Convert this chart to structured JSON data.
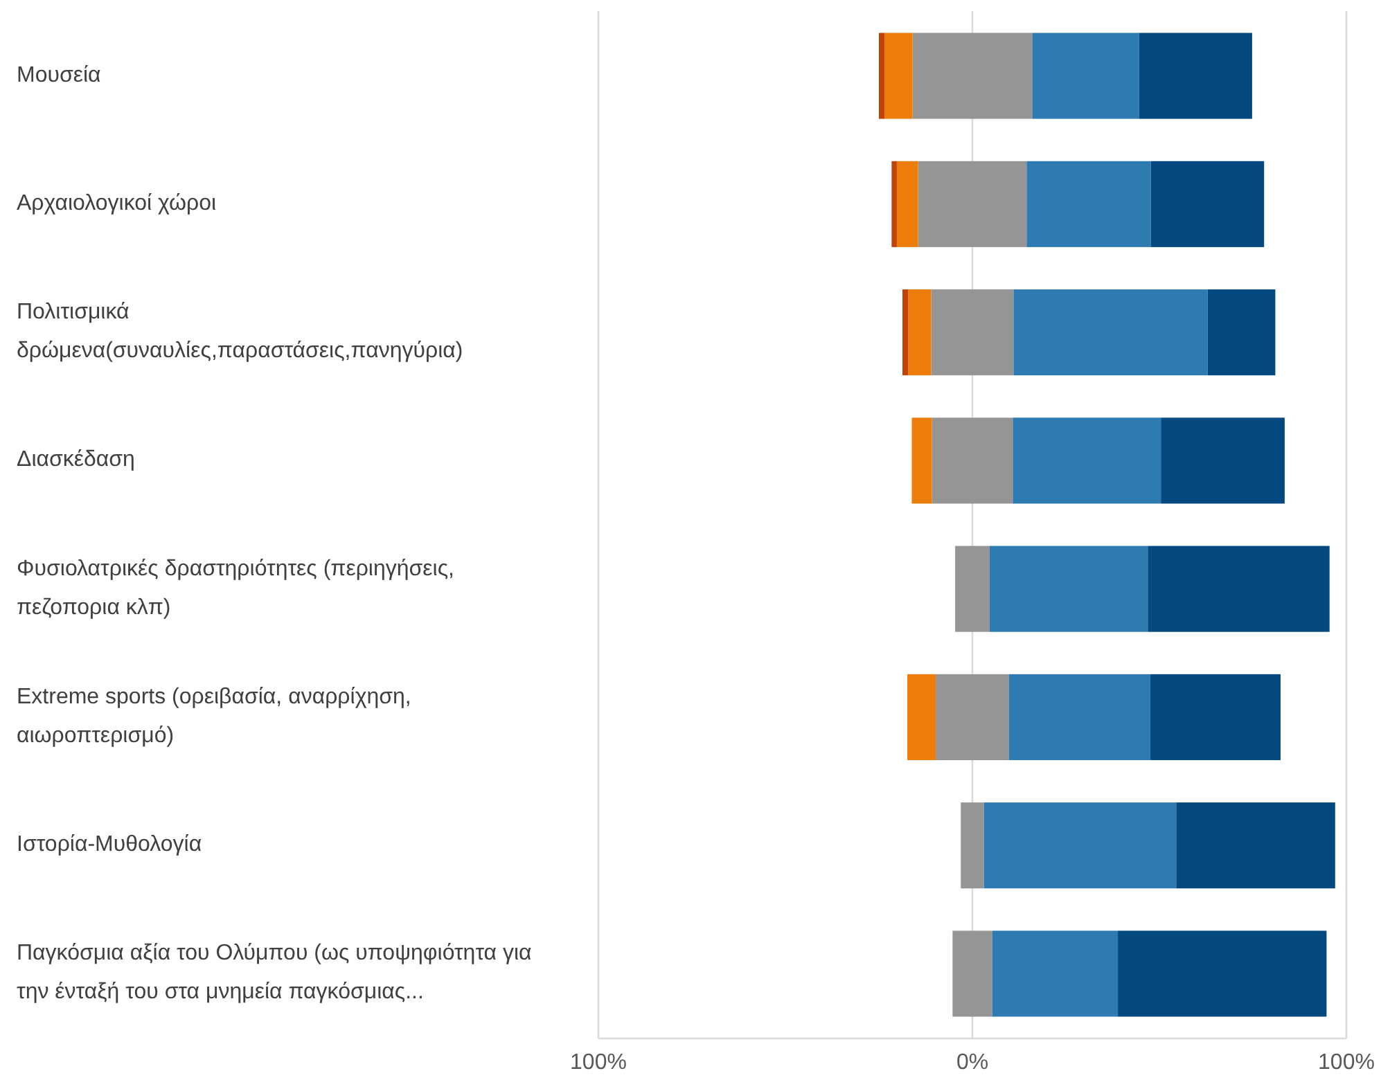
{
  "chart_data": {
    "type": "bar",
    "orientation": "horizontal",
    "stacked": true,
    "categories": [
      "Μουσεία",
      "Αρχαιολογικοί χώροι",
      "Πολιτισμικά δρώμενα(συναυλίες,παραστάσεις,πανηγύρια)",
      "Διασκέδαση",
      "Φυσιολατρικές δραστηριότητες (περιηγήσεις, πεζοπορια κλπ)",
      "Extreme sports (ορειβασία, αναρρίχηση, αιωροπτερισμό)",
      "Ιστορία-Μυθολογία",
      "Παγκόσμια αξία του Ολύμπου (ως υποψηφιότητα για την ένταξή του στα μνημεία παγκόσμιας..."
    ],
    "series": [
      {
        "color": "#959595",
        "values": [
          -16,
          -14.5,
          -11,
          -10.8,
          -4.6,
          -9.8,
          -3.1,
          -5.3
        ]
      },
      {
        "color": "#ed7d0a",
        "values": [
          -7.5,
          -5.7,
          -6.2,
          -5.4,
          0,
          -7.6,
          0,
          0
        ]
      },
      {
        "color": "#c0430c",
        "values": [
          -1.5,
          -1.4,
          -1.5,
          0,
          0,
          0,
          0,
          0
        ]
      },
      {
        "color": "#959595",
        "values": [
          16,
          14.5,
          11,
          10.8,
          4.6,
          9.8,
          3.1,
          5.3
        ]
      },
      {
        "color": "#2e7bb1",
        "values": [
          28.6,
          33.2,
          51.9,
          39.6,
          42.3,
          37.8,
          51.4,
          33.6
        ]
      },
      {
        "color": "#03497f",
        "values": [
          30.2,
          30.3,
          18.1,
          33.1,
          48.6,
          34.8,
          42.5,
          55.8
        ]
      }
    ],
    "xlim": [
      -100,
      100
    ],
    "xticks": [
      {
        "value": -100,
        "label": "100%"
      },
      {
        "value": 0,
        "label": "0%"
      },
      {
        "value": 100,
        "label": "100%"
      }
    ],
    "grid": "x"
  }
}
